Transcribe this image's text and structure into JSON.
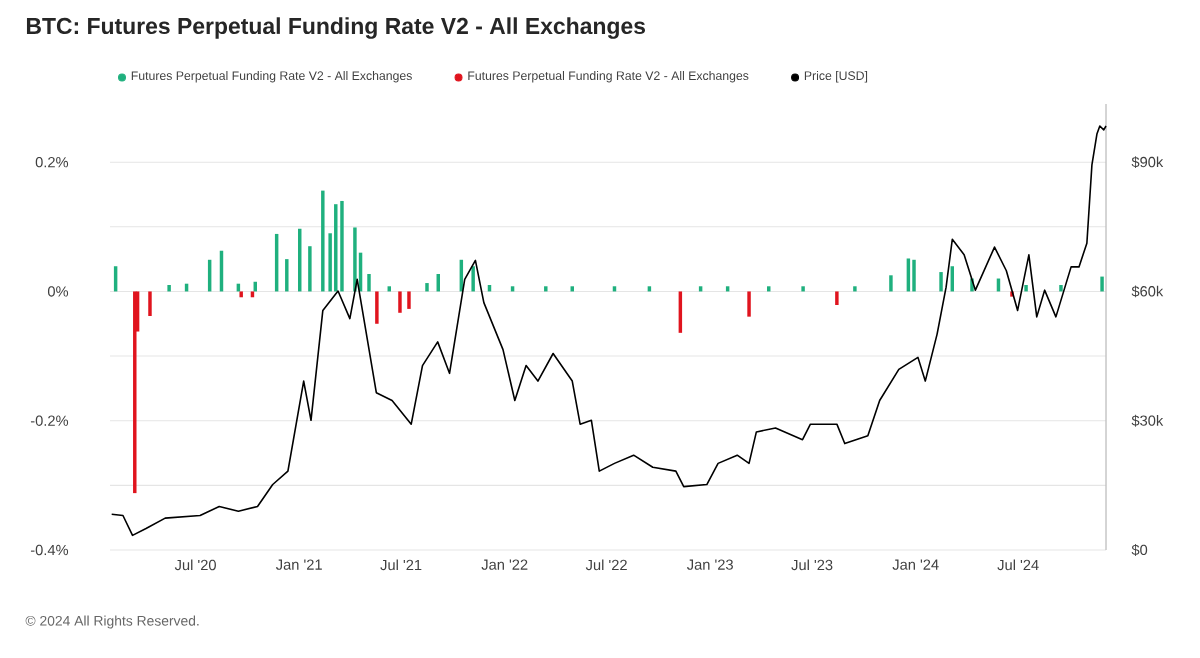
{
  "chart_data": {
    "type": "bar",
    "title": "BTC: Futures Perpetual Funding Rate V2 - All Exchanges",
    "annotations": [
      "© 2024 All Rights Reserved."
    ],
    "xlim": [
      "2020-01-31",
      "2024-12-04"
    ],
    "xticks": [
      {
        "value": "2020-07-01",
        "label": "Jul '20"
      },
      {
        "value": "2021-01-01",
        "label": "Jan '21"
      },
      {
        "value": "2021-07-01",
        "label": "Jul '21"
      },
      {
        "value": "2022-01-01",
        "label": "Jan '22"
      },
      {
        "value": "2022-07-01",
        "label": "Jul '22"
      },
      {
        "value": "2023-01-01",
        "label": "Jan '23"
      },
      {
        "value": "2023-07-01",
        "label": "Jul '23"
      },
      {
        "value": "2024-01-01",
        "label": "Jan '24"
      },
      {
        "value": "2024-07-01",
        "label": "Jul '24"
      }
    ],
    "ylim": [
      -0.4,
      0.29
    ],
    "yticks": [
      {
        "value": -0.4,
        "label": "-0.4%"
      },
      {
        "value": -0.3,
        "label": null
      },
      {
        "value": -0.2,
        "label": "-0.2%"
      },
      {
        "value": -0.1,
        "label": null
      },
      {
        "value": 0,
        "label": "0%"
      },
      {
        "value": 0.1,
        "label": null
      },
      {
        "value": 0.2,
        "label": "0.2%"
      }
    ],
    "y2lim": [
      0,
      103500
    ],
    "y2ticks": [
      {
        "value": 0,
        "label": "$0"
      },
      {
        "value": 30000,
        "label": "$30k"
      },
      {
        "value": 60000,
        "label": "$60k"
      },
      {
        "value": 90000,
        "label": "$90k"
      }
    ],
    "grid": "y",
    "legend": "top left",
    "series": [
      {
        "name": "Futures Perpetual Funding Rate V2 - All Exchanges",
        "color": "#1fb07e",
        "x": [
          "2020-02-10",
          "2020-05-15",
          "2020-06-15",
          "2020-07-26",
          "2020-08-16",
          "2020-09-15",
          "2020-10-15",
          "2020-11-22",
          "2020-12-10",
          "2021-01-02",
          "2021-01-20",
          "2021-02-12",
          "2021-02-25",
          "2021-03-07",
          "2021-03-18",
          "2021-04-10",
          "2021-04-20",
          "2021-05-05",
          "2021-06-10",
          "2021-08-16",
          "2021-09-05",
          "2021-10-16",
          "2021-11-06",
          "2021-12-05",
          "2022-01-15",
          "2022-03-15",
          "2022-05-01",
          "2022-07-15",
          "2022-09-15",
          "2022-12-15",
          "2023-02-01",
          "2023-04-15",
          "2023-06-15",
          "2023-09-15",
          "2023-11-18",
          "2023-12-19",
          "2023-12-29",
          "2024-02-15",
          "2024-03-06",
          "2024-04-10",
          "2024-05-27",
          "2024-07-15",
          "2024-09-15",
          "2024-11-27"
        ],
        "values": [
          0.039,
          0.01,
          0.012,
          0.049,
          0.063,
          0.012,
          0.015,
          0.089,
          0.05,
          0.097,
          0.07,
          0.156,
          0.09,
          0.135,
          0.14,
          0.099,
          0.06,
          0.027,
          0.008,
          0.013,
          0.027,
          0.049,
          0.039,
          0.01,
          0.008,
          0.008,
          0.008,
          0.008,
          0.008,
          0.008,
          0.008,
          0.008,
          0.008,
          0.008,
          0.025,
          0.051,
          0.049,
          0.03,
          0.039,
          0.02,
          0.02,
          0.01,
          0.01,
          0.023
        ]
      },
      {
        "name": "Futures Perpetual Funding Rate V2 - All Exchanges",
        "color": "#e0141e",
        "x": [
          "2020-03-15",
          "2020-03-20",
          "2020-04-11",
          "2020-09-20",
          "2020-10-10",
          "2021-05-19",
          "2021-06-29",
          "2021-07-15",
          "2022-11-09",
          "2023-03-11",
          "2023-08-14",
          "2024-06-20"
        ],
        "values": [
          -0.312,
          -0.062,
          -0.038,
          -0.009,
          -0.009,
          -0.05,
          -0.033,
          -0.027,
          -0.064,
          -0.039,
          -0.021,
          -0.008
        ]
      },
      {
        "name": "Price [USD]",
        "type": "line",
        "axis": "y2",
        "color": "#000000",
        "x": [
          "2020-02-03",
          "2020-02-23",
          "2020-03-11",
          "2020-04-04",
          "2020-05-08",
          "2020-07-09",
          "2020-08-12",
          "2020-09-15",
          "2020-10-19",
          "2020-11-15",
          "2020-12-12",
          "2021-01-09",
          "2021-01-22",
          "2021-02-12",
          "2021-03-11",
          "2021-04-01",
          "2021-04-14",
          "2021-05-18",
          "2021-06-15",
          "2021-07-19",
          "2021-08-08",
          "2021-09-04",
          "2021-09-25",
          "2021-10-22",
          "2021-11-10",
          "2021-11-25",
          "2021-12-29",
          "2022-01-19",
          "2022-02-08",
          "2022-03-01",
          "2022-03-28",
          "2022-05-01",
          "2022-05-15",
          "2022-06-04",
          "2022-06-18",
          "2022-07-15",
          "2022-08-18",
          "2022-09-21",
          "2022-11-01",
          "2022-11-15",
          "2022-12-26",
          "2023-01-15",
          "2023-02-18",
          "2023-03-11",
          "2023-03-24",
          "2023-04-27",
          "2023-06-14",
          "2023-06-28",
          "2023-08-14",
          "2023-08-28",
          "2023-10-08",
          "2023-10-29",
          "2023-12-02",
          "2024-01-05",
          "2024-01-18",
          "2024-02-08",
          "2024-02-24",
          "2024-03-06",
          "2024-03-27",
          "2024-04-16",
          "2024-05-20",
          "2024-06-10",
          "2024-06-30",
          "2024-07-20",
          "2024-08-03",
          "2024-08-17",
          "2024-09-06",
          "2024-10-03",
          "2024-10-17",
          "2024-10-31",
          "2024-11-09",
          "2024-11-18",
          "2024-11-23",
          "2024-11-30",
          "2024-12-04"
        ],
        "values": [
          8300,
          8000,
          3400,
          5000,
          7400,
          8000,
          10100,
          9000,
          10100,
          15200,
          18300,
          39200,
          30100,
          55600,
          60100,
          53700,
          62800,
          36500,
          34700,
          29200,
          42800,
          48300,
          41000,
          62800,
          67200,
          57400,
          46500,
          34700,
          42800,
          39200,
          45600,
          39200,
          29200,
          30100,
          18300,
          20100,
          22000,
          19200,
          18300,
          14700,
          15200,
          20100,
          22000,
          20100,
          27400,
          28300,
          25600,
          29200,
          29200,
          24700,
          26500,
          34700,
          41900,
          44700,
          39200,
          50100,
          61000,
          72100,
          68500,
          60300,
          70300,
          64800,
          55600,
          68500,
          54100,
          60300,
          54100,
          65700,
          65700,
          71200,
          89400,
          96600,
          98400,
          97500,
          98400
        ]
      }
    ]
  }
}
